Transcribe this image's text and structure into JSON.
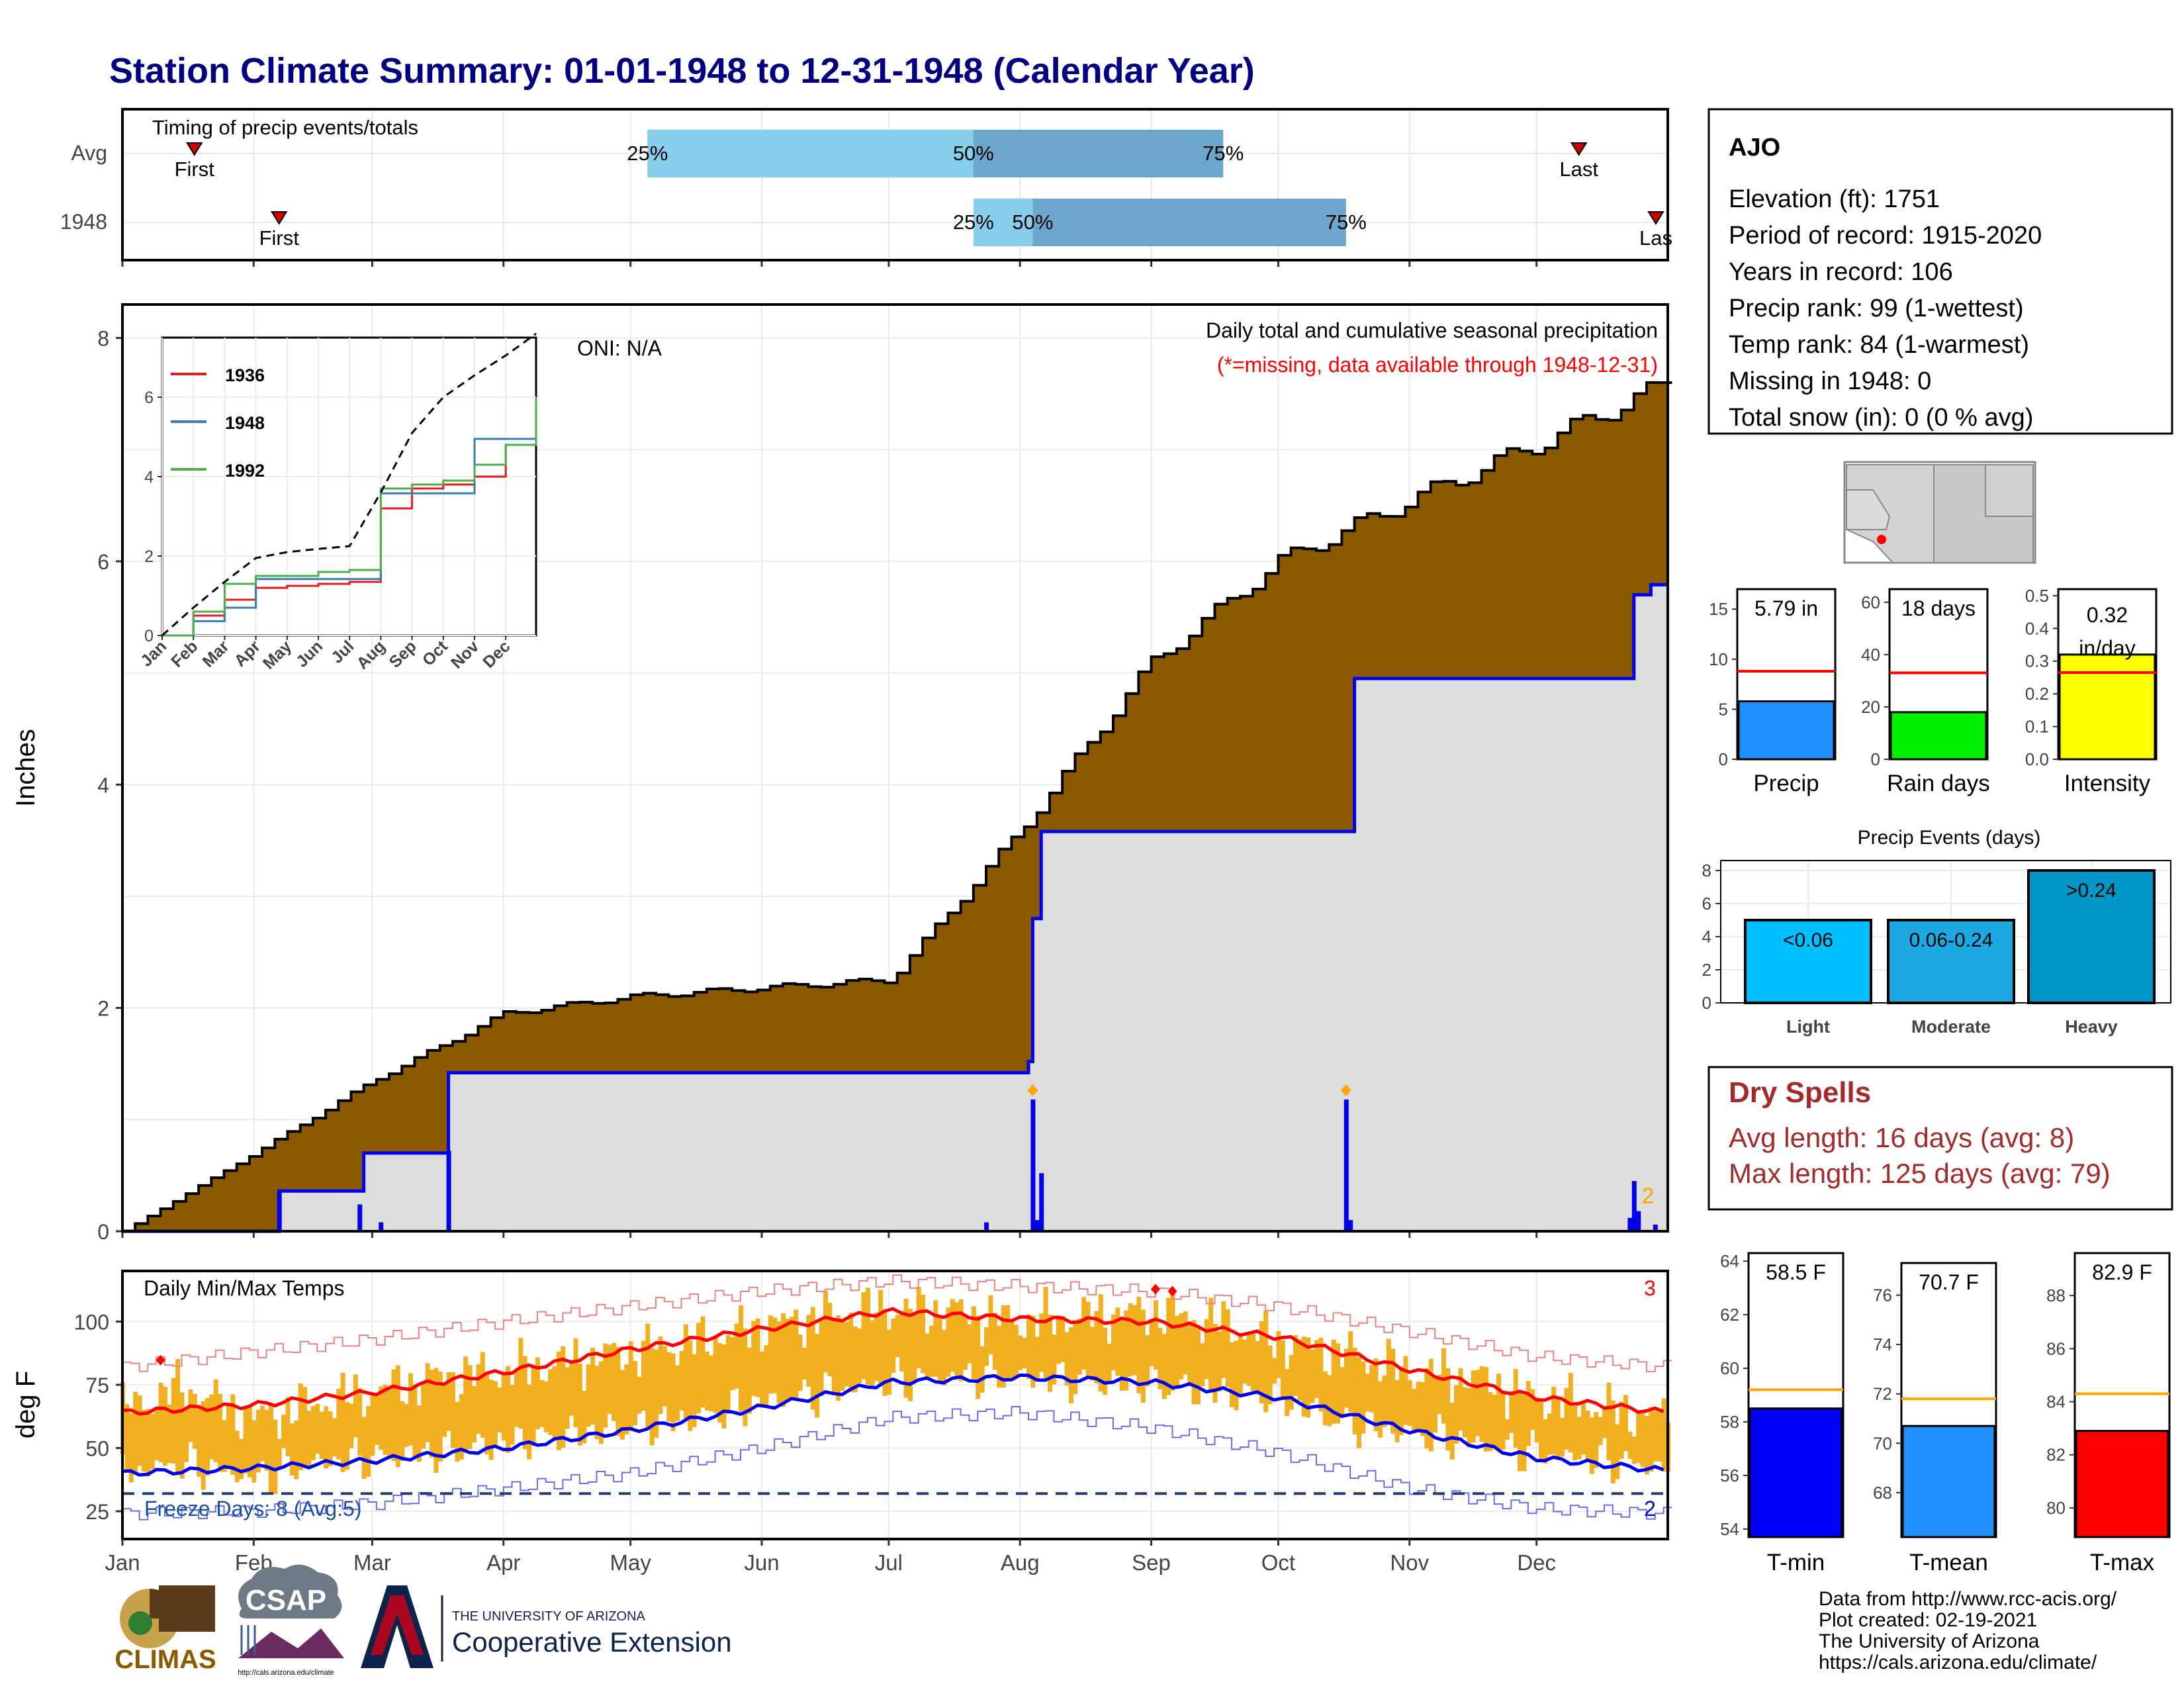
{
  "title": "Station Climate Summary: 01-01-1948 to 12-31-1948 (Calendar Year)",
  "months": [
    "Jan",
    "Feb",
    "Mar",
    "Apr",
    "May",
    "Jun",
    "Jul",
    "Aug",
    "Sep",
    "Oct",
    "Nov",
    "Dec"
  ],
  "timing": {
    "label": "Timing of precip events/totals",
    "rows": [
      {
        "name": "Avg",
        "first_label": "First",
        "last_label": "Last",
        "first_doy": 18,
        "last_doy": 345,
        "q25": 125,
        "q50": 202,
        "q75": 261,
        "q25_label": "25%",
        "q50_label": "50%",
        "q75_label": "75%"
      },
      {
        "name": "1948",
        "first_label": "First",
        "last_label": "Las",
        "first_doy": 38,
        "last_doy": 364,
        "q25": 202,
        "q50": 216,
        "q75": 290,
        "q25_label": "25%",
        "q50_label": "50%",
        "q75_label": "75%"
      }
    ]
  },
  "precip_panel": {
    "ylabel": "Inches",
    "yticks": [
      0,
      2,
      4,
      6,
      8
    ],
    "oni": "ONI: N/A",
    "subtitle": "Daily total and cumulative seasonal precipitation",
    "missing_note": "(*=missing, data available through 1948-12-31)",
    "corner_count": "2"
  },
  "inset": {
    "yticks": [
      0,
      2,
      4,
      6
    ],
    "xticks": [
      "Jan",
      "Feb",
      "Mar",
      "Apr",
      "May",
      "Jun",
      "Jul",
      "Aug",
      "Sep",
      "Oct",
      "Nov",
      "Dec"
    ],
    "legend": [
      "1936",
      "1948",
      "1992"
    ]
  },
  "temp_panel": {
    "ylabel": "deg F",
    "label": "Daily Min/Max Temps",
    "yticks": [
      25,
      50,
      75,
      100
    ],
    "freeze": "Freeze Days: 8 (Avg:5)",
    "record_high_count": "3",
    "record_low_count": "2"
  },
  "station": {
    "name": "AJO",
    "lines": [
      "Elevation (ft): 1751",
      "Period of record: 1915-2020",
      "Years in record: 106",
      "Precip rank: 99 (1-wettest)",
      "Temp rank: 84 (1-warmest)",
      "Missing in 1948: 0",
      "Total snow (in): 0 (0 % avg)"
    ]
  },
  "mini_bars": [
    {
      "label": "Precip",
      "value_label": "5.79 in",
      "value": 5.79,
      "avg": 8.8,
      "ymax": 17,
      "yticks": [
        0,
        5,
        10,
        15
      ],
      "color": "#1e90ff"
    },
    {
      "label": "Rain days",
      "value_label": "18 days",
      "value": 18,
      "avg": 33,
      "ymax": 65,
      "yticks": [
        0,
        20,
        40,
        60
      ],
      "color": "#00ee00"
    },
    {
      "label": "Intensity",
      "value_label": "0.32 in/day",
      "value": 0.32,
      "avg": 0.265,
      "ymax": 0.52,
      "yticks": [
        0.0,
        0.1,
        0.2,
        0.3,
        0.4,
        0.5
      ],
      "color": "#ffff00"
    }
  ],
  "precip_events": {
    "title": "Precip Events (days)",
    "yticks": [
      0,
      2,
      4,
      6,
      8
    ],
    "bars": [
      {
        "label": "Light",
        "range": "<0.06",
        "value": 5,
        "color": "#00bfff"
      },
      {
        "label": "Moderate",
        "range": "0.06-0.24",
        "value": 5,
        "color": "#1ca8e0"
      },
      {
        "label": "Heavy",
        "range": ">0.24",
        "value": 8,
        "color": "#0096c7"
      }
    ]
  },
  "dry_spells": {
    "title": "Dry Spells",
    "avg_line": "Avg length: 16 days (avg: 8)",
    "max_line": "Max length: 125 days (avg: 79)"
  },
  "temp_bars": [
    {
      "label": "T-min",
      "value_label": "58.5 F",
      "value": 58.5,
      "avg": 59.2,
      "ymin": 53.7,
      "ymax": 64.3,
      "yticks": [
        54,
        56,
        58,
        60,
        62,
        64
      ],
      "color": "#0000ff"
    },
    {
      "label": "T-mean",
      "value_label": "70.7 F",
      "value": 70.7,
      "avg": 71.8,
      "ymin": 66.2,
      "ymax": 77.3,
      "yticks": [
        68,
        70,
        72,
        74,
        76
      ],
      "color": "#1e90ff"
    },
    {
      "label": "T-max",
      "value_label": "82.9 F",
      "value": 82.9,
      "avg": 84.3,
      "ymin": 78.9,
      "ymax": 89.6,
      "yticks": [
        80,
        82,
        84,
        86,
        88
      ],
      "color": "#ff0000"
    }
  ],
  "footer": {
    "lines": [
      "Data from http://www.rcc-acis.org/",
      "Plot created: 02-19-2021",
      "The University of Arizona",
      "https://cals.arizona.edu/climate/"
    ],
    "climas": "CLIMAS",
    "csap": "CSAP",
    "csap_url": "http://cals.arizona.edu/climate",
    "ua_small": "THE UNIVERSITY OF ARIZONA",
    "ua_large": "Cooperative Extension"
  },
  "colors": {
    "avg_cum": "#8b5a00",
    "year_cum": "#dddddd",
    "year_line": "#0000ee",
    "q_light": "#87ceeb",
    "q_dark": "#6ca6cd",
    "temp_bar": "#f0b020",
    "navy": "#000080",
    "dry": "#a52a2a"
  },
  "chart_data": [
    {
      "type": "area",
      "title": "Daily total and cumulative seasonal precipitation",
      "ylabel": "Inches",
      "ylim": [
        0,
        8.3
      ],
      "xlim_doy": [
        1,
        366
      ],
      "avg_cumulative": {
        "doy": [
          1,
          32,
          60,
          91,
          121,
          152,
          182,
          213,
          244,
          274,
          305,
          335,
          366
        ],
        "inches": [
          0,
          0.7,
          1.35,
          1.95,
          2.1,
          2.18,
          2.25,
          3.6,
          5.1,
          6.0,
          6.55,
          7.05,
          7.6
        ]
      },
      "year_cumulative": {
        "doy": [
          1,
          38,
          56,
          58,
          76,
          78,
          200,
          215,
          216,
          218,
          289,
          292,
          356,
          358,
          362,
          366
        ],
        "inches": [
          0,
          0.36,
          0.36,
          0.7,
          0.7,
          1.42,
          1.42,
          1.52,
          2.8,
          3.58,
          3.58,
          4.95,
          4.95,
          5.7,
          5.79,
          5.79
        ]
      },
      "daily": {
        "doy": [
          38,
          57,
          62,
          78,
          205,
          216,
          217,
          218,
          290,
          291,
          357,
          358,
          359,
          363
        ],
        "inches": [
          0.36,
          0.24,
          0.08,
          0.72,
          0.08,
          1.18,
          0.1,
          0.52,
          1.18,
          0.1,
          0.12,
          0.45,
          0.18,
          0.06
        ]
      },
      "record_day_markers_doy": [
        216,
        290
      ]
    },
    {
      "type": "line",
      "title": "inset cumulative precipitation",
      "ylim": [
        0,
        7.5
      ],
      "series": [
        {
          "name": "1936",
          "months": [
            1,
            2,
            3,
            4,
            5,
            6,
            7,
            8,
            9,
            10,
            11,
            12,
            12.97
          ],
          "inches": [
            0,
            0.5,
            0.9,
            1.2,
            1.25,
            1.3,
            1.35,
            3.2,
            3.7,
            3.8,
            4.0,
            4.8,
            5.8
          ]
        },
        {
          "name": "1948",
          "months": [
            1,
            2,
            3,
            4,
            5,
            6,
            7,
            8,
            9,
            10,
            11,
            12,
            12.97
          ],
          "inches": [
            0,
            0.36,
            0.7,
            1.42,
            1.42,
            1.42,
            1.42,
            3.58,
            3.58,
            3.58,
            4.95,
            4.95,
            5.79
          ]
        },
        {
          "name": "1992",
          "months": [
            1,
            2,
            3,
            4,
            5,
            6,
            7,
            8,
            9,
            10,
            11,
            12,
            12.97
          ],
          "inches": [
            0,
            0.6,
            1.3,
            1.5,
            1.5,
            1.6,
            1.65,
            3.7,
            3.8,
            3.9,
            4.3,
            4.8,
            6.0
          ]
        },
        {
          "name": "avg",
          "months": [
            1,
            2,
            3,
            4,
            5,
            6,
            7,
            8,
            9,
            10,
            11,
            12,
            12.97
          ],
          "inches": [
            0,
            0.7,
            1.35,
            1.95,
            2.1,
            2.18,
            2.25,
            3.6,
            5.1,
            6.0,
            6.55,
            7.05,
            7.6
          ]
        }
      ]
    },
    {
      "type": "bar",
      "title": "Daily Min/Max Temps",
      "ylabel": "deg F",
      "ylim": [
        14,
        120
      ],
      "freeze_line_f": 32,
      "avg_tmax": {
        "doy": [
          1,
          32,
          60,
          91,
          121,
          152,
          182,
          213,
          244,
          274,
          305,
          335,
          366
        ],
        "f": [
          64,
          67,
          72,
          80,
          89,
          97,
          104,
          101,
          100,
          94,
          81,
          70,
          64
        ]
      },
      "avg_tmin": {
        "doy": [
          1,
          32,
          60,
          91,
          121,
          152,
          182,
          213,
          244,
          274,
          305,
          335,
          366
        ],
        "f": [
          40,
          42,
          45,
          50,
          57,
          66,
          76,
          78,
          76,
          70,
          57,
          46,
          41
        ]
      },
      "record_high": {
        "doy": [
          1,
          32,
          60,
          91,
          121,
          152,
          182,
          213,
          244,
          274,
          305,
          335,
          366
        ],
        "f": [
          82,
          88,
          93,
          100,
          106,
          112,
          116,
          114,
          112,
          106,
          96,
          86,
          82
        ]
      },
      "record_low": {
        "doy": [
          1,
          32,
          60,
          91,
          121,
          152,
          182,
          213,
          244,
          274,
          305,
          335,
          366
        ],
        "f": [
          24,
          25,
          28,
          34,
          40,
          50,
          62,
          64,
          58,
          48,
          34,
          26,
          24
        ]
      },
      "daily_tmax_smoothed": {
        "doy": [
          1,
          15,
          32,
          46,
          60,
          75,
          91,
          106,
          121,
          137,
          152,
          167,
          182,
          197,
          213,
          228,
          244,
          259,
          274,
          289,
          305,
          320,
          335,
          350,
          366
        ],
        "f": [
          65,
          74,
          62,
          67,
          72,
          78,
          80,
          84,
          88,
          92,
          98,
          102,
          105,
          104,
          100,
          102,
          104,
          100,
          92,
          88,
          80,
          78,
          70,
          66,
          62
        ]
      },
      "daily_tmin_smoothed": {
        "doy": [
          1,
          15,
          32,
          46,
          60,
          75,
          91,
          106,
          121,
          137,
          152,
          167,
          182,
          197,
          213,
          228,
          244,
          259,
          274,
          289,
          305,
          320,
          335,
          350,
          366
        ],
        "f": [
          40,
          44,
          38,
          44,
          46,
          48,
          52,
          55,
          58,
          62,
          68,
          72,
          76,
          78,
          78,
          76,
          75,
          72,
          70,
          60,
          56,
          52,
          48,
          45,
          42
        ]
      },
      "record_high_days_doy": [
        10,
        245,
        249
      ],
      "record_counts": {
        "highs": 3,
        "lows": 2
      }
    },
    {
      "type": "bar",
      "categories": [
        "Precip",
        "Rain days",
        "Intensity"
      ],
      "values": [
        5.79,
        18,
        0.32
      ],
      "averages": [
        8.8,
        33,
        0.265
      ]
    },
    {
      "type": "bar",
      "title": "Precip Events (days)",
      "categories": [
        "Light",
        "Moderate",
        "Heavy"
      ],
      "values": [
        5,
        5,
        8
      ]
    },
    {
      "type": "bar",
      "categories": [
        "T-min",
        "T-mean",
        "T-max"
      ],
      "values": [
        58.5,
        70.7,
        82.9
      ],
      "averages": [
        59.2,
        71.8,
        84.3
      ]
    }
  ]
}
